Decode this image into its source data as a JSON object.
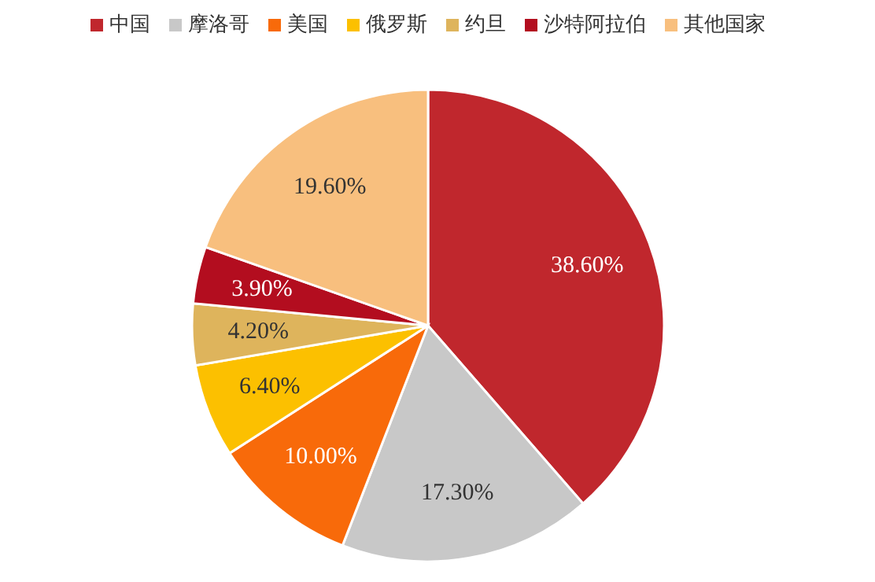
{
  "chart_data": {
    "type": "pie",
    "categories": [
      "中国",
      "摩洛哥",
      "美国",
      "俄罗斯",
      "约旦",
      "沙特阿拉伯",
      "其他国家"
    ],
    "values": [
      38.6,
      17.3,
      10.0,
      6.4,
      4.2,
      3.9,
      19.6
    ],
    "value_labels": [
      "38.60%",
      "17.30%",
      "10.00%",
      "6.40%",
      "4.20%",
      "3.90%",
      "19.60%"
    ],
    "colors": [
      "#c0272d",
      "#c8c8c8",
      "#f86a0a",
      "#fcc000",
      "#deb45c",
      "#b30d1f",
      "#f8bf7e"
    ],
    "legend": "top"
  }
}
